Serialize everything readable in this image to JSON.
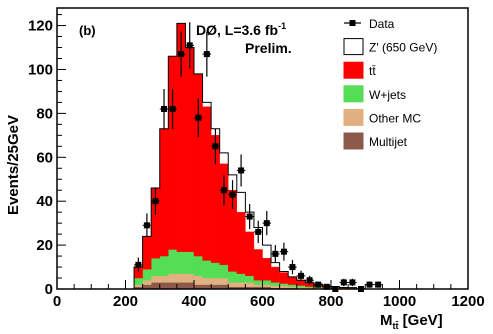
{
  "chart_data": {
    "type": "bar",
    "panel_label": "(b)",
    "experiment": "DØ,  L=3.6 fb",
    "lumi_sup": "-1",
    "prelim": "Prelim.",
    "xlabel": "M",
    "xlabel_sub": "tt̄",
    "xlabel_unit": " [GeV]",
    "ylabel": "Events/25GeV",
    "xlim": [
      0,
      1200
    ],
    "ylim": [
      0,
      128
    ],
    "xticks": [
      "0",
      "200",
      "400",
      "600",
      "800",
      "1000",
      "1200"
    ],
    "yticks": [
      "0",
      "20",
      "40",
      "60",
      "80",
      "100",
      "120"
    ],
    "bin_width": 25,
    "bin_edges_start": 225,
    "stack": [
      {
        "name": "Multijet",
        "color": "#8b5a4a",
        "values": [
          1,
          2,
          3,
          3,
          3,
          3,
          3,
          2,
          2,
          2,
          2,
          1,
          1,
          1,
          1,
          1,
          0.5,
          0.5,
          0.5,
          0.3,
          0.3,
          0.2,
          0.2,
          0.1,
          0.1,
          0.1
        ]
      },
      {
        "name": "Other MC",
        "color": "#e0b080",
        "values": [
          1,
          2,
          3,
          3,
          4,
          4,
          4,
          4,
          3,
          3,
          3,
          2,
          2,
          2,
          1,
          1,
          1,
          1,
          0.5,
          0.5,
          0.3,
          0.3,
          0.2,
          0.2,
          0.1,
          0.1
        ]
      },
      {
        "name": "W+jets",
        "color": "#55dd55",
        "values": [
          3,
          5,
          8,
          9,
          11,
          10,
          10,
          9,
          8,
          7,
          6,
          5,
          4,
          3,
          2,
          2,
          1.5,
          1,
          1,
          0.8,
          0.5,
          0.5,
          0.3,
          0.3,
          0.2,
          0.2
        ]
      },
      {
        "name": "tt̄",
        "color": "#ff0000",
        "values": [
          5,
          15,
          32,
          58,
          88,
          104,
          93,
          83,
          70,
          58,
          46,
          37,
          28,
          20,
          14,
          10,
          7,
          5,
          3.5,
          2.5,
          1.8,
          1.2,
          0.8,
          0.5,
          0.3,
          0.2
        ]
      }
    ],
    "signal": {
      "name": "Z' (650 GeV)",
      "color": "#000000",
      "totals_with_signal": [
        10,
        24,
        46,
        73,
        106,
        121,
        110,
        98,
        85,
        73,
        62,
        52,
        44,
        35,
        28,
        20,
        12,
        8,
        5.5,
        4,
        2.9,
        2.2,
        1.5,
        1.1,
        0.7,
        0.6
      ]
    },
    "data": {
      "name": "Data",
      "x": [
        237.5,
        262.5,
        287.5,
        312.5,
        337.5,
        362.5,
        387.5,
        412.5,
        437.5,
        462.5,
        487.5,
        512.5,
        537.5,
        562.5,
        587.5,
        612.5,
        637.5,
        662.5,
        687.5,
        712.5,
        737.5,
        762.5,
        787.5,
        812.5,
        837.5,
        862.5,
        887.5,
        912.5,
        937.5
      ],
      "y": [
        11,
        29,
        40,
        82,
        82,
        107,
        111,
        78,
        107,
        65,
        45,
        43,
        54,
        33,
        26,
        30,
        16,
        17,
        10,
        6,
        4,
        2,
        1,
        0,
        3,
        3,
        0,
        2,
        2
      ],
      "err": [
        3.3,
        5.4,
        6.3,
        9.1,
        9.1,
        10.3,
        10.5,
        8.8,
        10.3,
        8.1,
        6.7,
        6.6,
        7.3,
        5.7,
        5.1,
        5.5,
        4,
        4.1,
        3.2,
        2.4,
        2,
        1.4,
        1,
        0,
        1.7,
        1.7,
        0,
        1.4,
        1.4
      ]
    },
    "legend": [
      {
        "label": "Data",
        "kind": "data"
      },
      {
        "label": "Z' (650 GeV)",
        "kind": "box",
        "color": "#ffffff"
      },
      {
        "label": "tt̄",
        "kind": "box",
        "color": "#ff0000"
      },
      {
        "label": "W+jets",
        "kind": "box",
        "color": "#55dd55"
      },
      {
        "label": "Other MC",
        "kind": "box",
        "color": "#e0b080"
      },
      {
        "label": "Multijet",
        "kind": "box",
        "color": "#8b5a4a"
      }
    ],
    "legend_position": "top-right",
    "grid": false
  }
}
